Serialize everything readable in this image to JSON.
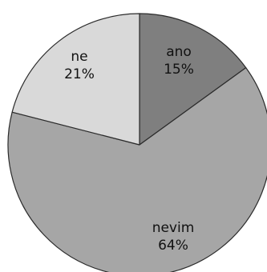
{
  "chart_data": {
    "type": "pie",
    "title": "",
    "start_angle_deg": 0,
    "direction": "clockwise",
    "slices": [
      {
        "label": "ano",
        "value": 15,
        "value_label": "15%",
        "color": "#7f7f7f"
      },
      {
        "label": "nevim",
        "value": 64,
        "value_label": "64%",
        "color": "#a6a6a6"
      },
      {
        "label": "ne",
        "value": 21,
        "value_label": "21%",
        "color": "#d9d9d9"
      }
    ]
  }
}
